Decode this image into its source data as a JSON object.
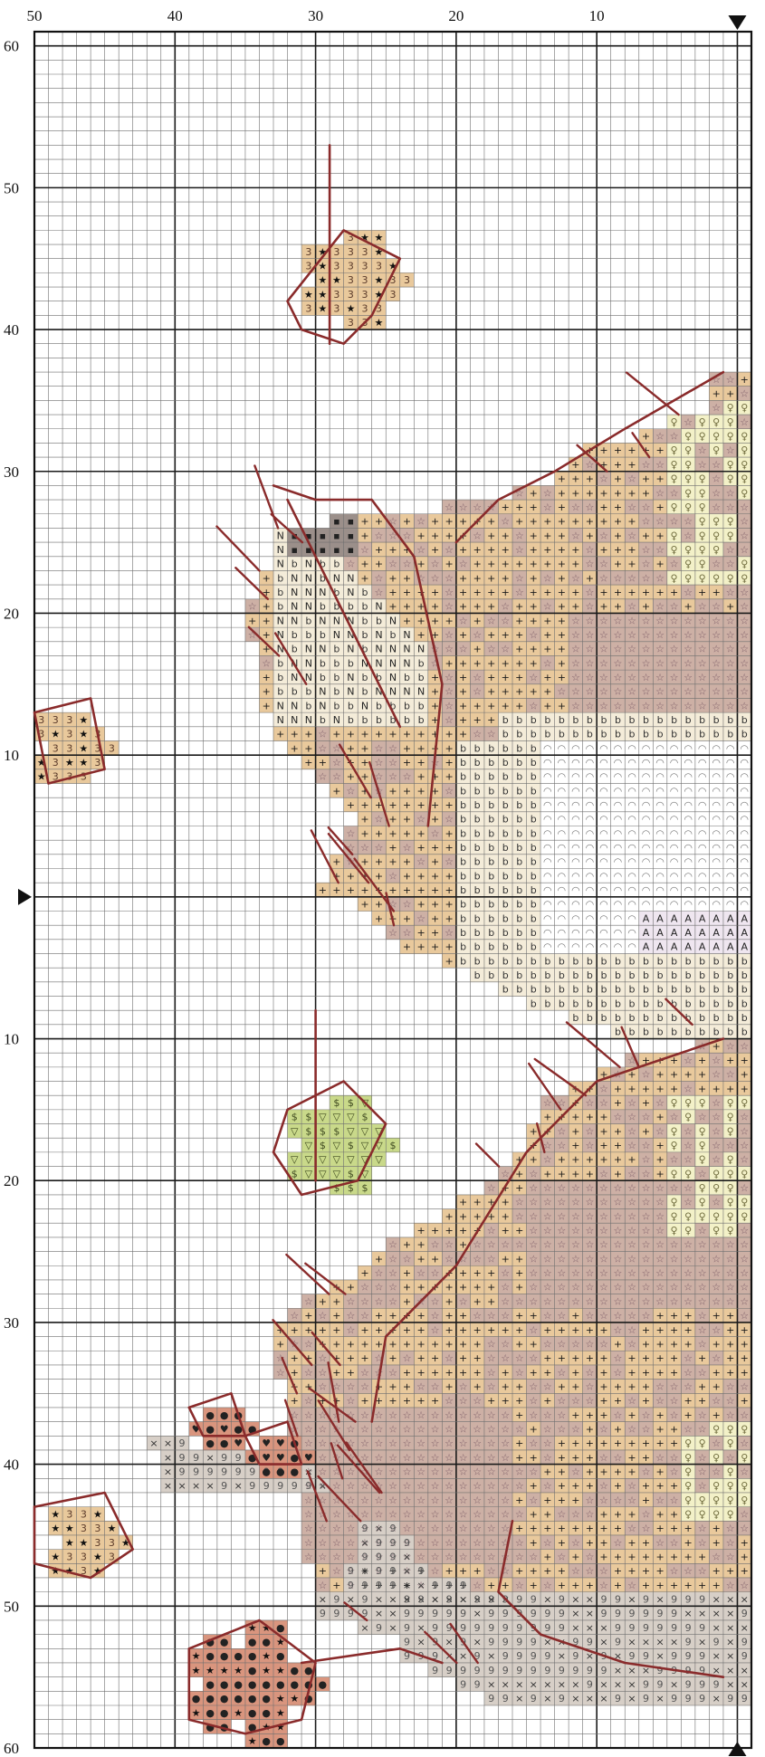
{
  "pattern": {
    "grid": {
      "columns": 51,
      "rows": 121,
      "major_every": 10,
      "background": "#ffffff",
      "line_color": "#6f6f6f",
      "major_line_color": "#1a1a1a"
    },
    "top_axis": {
      "labels": [
        "50",
        "40",
        "30",
        "20",
        "10"
      ],
      "values": [
        50,
        40,
        30,
        20,
        10
      ]
    },
    "left_axis_upper": {
      "labels": [
        "60",
        "50",
        "40",
        "30",
        "20",
        "10"
      ],
      "values": [
        60,
        50,
        40,
        30,
        20,
        10
      ]
    },
    "left_axis_lower": {
      "labels": [
        "10",
        "20",
        "30",
        "40",
        "50",
        "60"
      ],
      "values": [
        10,
        20,
        30,
        40,
        50,
        60
      ]
    },
    "center_markers": [
      "top-right-arrow",
      "left-middle-arrow",
      "bottom-right-arrow"
    ],
    "colors": {
      "tan": "#e9c99c",
      "mauve": "#cdb0a5",
      "pale": "#f4ecd9",
      "lemon": "#f3f1c8",
      "green": "#c9d98a",
      "rose": "#d9957e",
      "dark": "#9b8f8a",
      "grey": "#d7cfc7",
      "backstitch": "#8a2b2b"
    },
    "legend_symbols": {
      "tan": "+",
      "mauve": "☆",
      "pale": "b",
      "white": "◠",
      "lemon": "♀",
      "leaf_red": "3",
      "leaf_star": "★",
      "leaf_green": "▽",
      "leaf_dollar": "$",
      "grey": "9",
      "cross": "×"
    }
  }
}
